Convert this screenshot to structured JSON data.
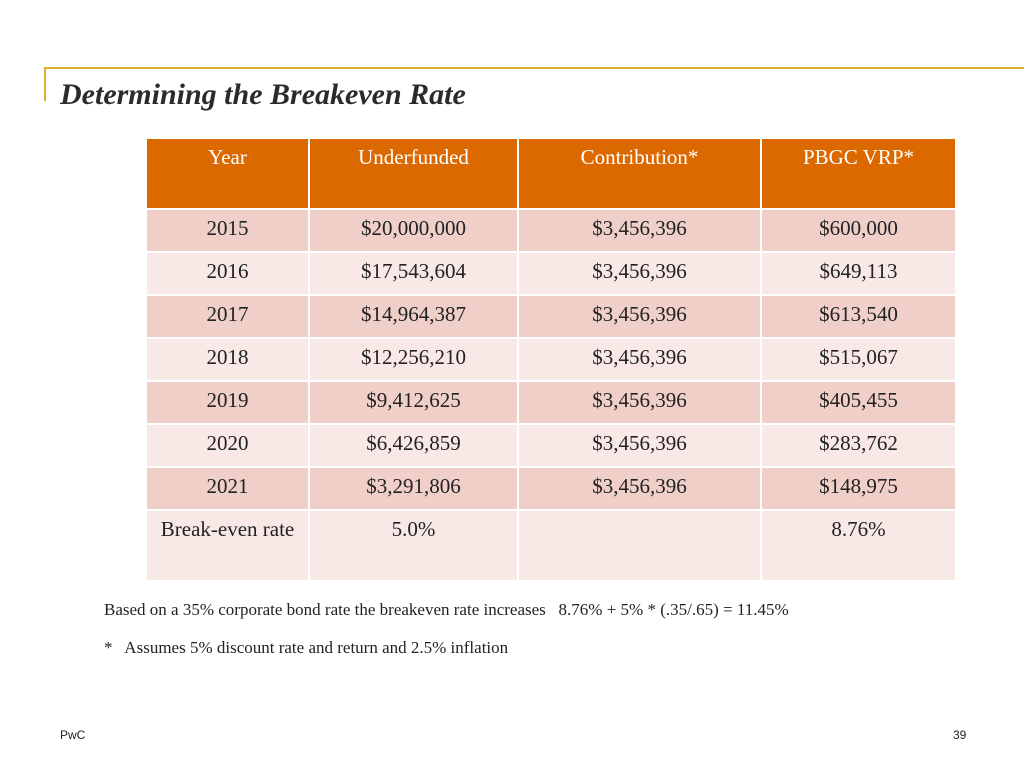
{
  "header": {
    "title": "Determining the Breakeven Rate"
  },
  "table": {
    "columns": [
      "Year",
      "Underfunded",
      "Contribution*",
      "PBGC VRP*"
    ],
    "rows": [
      [
        "2015",
        "$20,000,000",
        "$3,456,396",
        "$600,000"
      ],
      [
        "2016",
        "$17,543,604",
        "$3,456,396",
        "$649,113"
      ],
      [
        "2017",
        "$14,964,387",
        "$3,456,396",
        "$613,540"
      ],
      [
        "2018",
        "$12,256,210",
        "$3,456,396",
        "$515,067"
      ],
      [
        "2019",
        "$9,412,625",
        "$3,456,396",
        "$405,455"
      ],
      [
        "2020",
        "$6,426,859",
        "$3,456,396",
        "$283,762"
      ],
      [
        "2021",
        "$3,291,806",
        "$3,456,396",
        "$148,975"
      ],
      [
        "Break-even rate",
        "5.0%",
        null,
        "8.76%"
      ]
    ]
  },
  "notes": [
    "Based on a 35% corporate bond rate the breakeven rate increases   8.76% + 5% * (.35/.65) = 11.45%",
    "*   Assumes 5% discount rate and return and 2.5% inflation"
  ],
  "footer": {
    "brand": "PwC",
    "page": "39"
  }
}
